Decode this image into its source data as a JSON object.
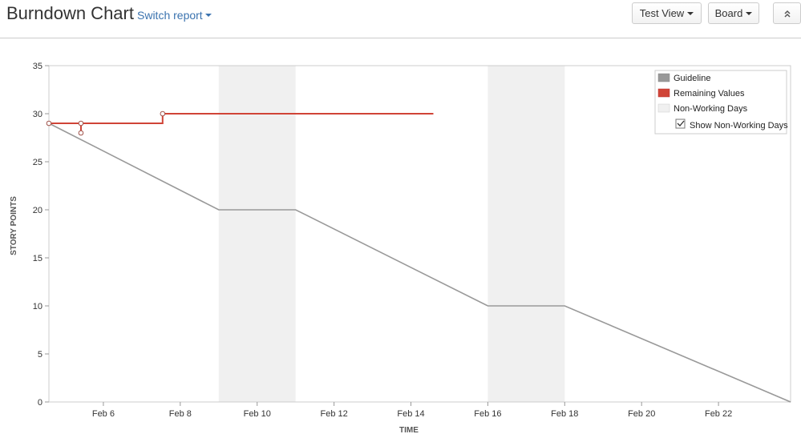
{
  "header": {
    "title": "Burndown Chart",
    "switch_report_label": "Switch report",
    "view_button_label": "Test View",
    "board_button_label": "Board",
    "collapse_icon": "double-chevron-up-icon"
  },
  "chart_data": {
    "type": "line",
    "title": "",
    "xlabel": "TIME",
    "ylabel": "STORY POINTS",
    "ylim": [
      0,
      35
    ],
    "xlim": [
      "2016-02-04 14:00",
      "2016-02-23 21:00"
    ],
    "yticks": [
      0,
      5,
      10,
      15,
      20,
      25,
      30,
      35
    ],
    "xtick_labels": [
      "Feb 6",
      "Feb 8",
      "Feb 10",
      "Feb 12",
      "Feb 14",
      "Feb 16",
      "Feb 18",
      "Feb 20",
      "Feb 22"
    ],
    "xtick_dates": [
      "2016-02-06",
      "2016-02-08",
      "2016-02-10",
      "2016-02-12",
      "2016-02-14",
      "2016-02-16",
      "2016-02-18",
      "2016-02-20",
      "2016-02-22"
    ],
    "non_working_days": [
      {
        "start": "2016-02-09",
        "end": "2016-02-11"
      },
      {
        "start": "2016-02-16",
        "end": "2016-02-18"
      }
    ],
    "series": [
      {
        "name": "Guideline",
        "color": "#999999",
        "points": [
          {
            "x": "2016-02-04 14:00",
            "y": 29
          },
          {
            "x": "2016-02-09",
            "y": 20
          },
          {
            "x": "2016-02-11",
            "y": 20
          },
          {
            "x": "2016-02-16",
            "y": 10
          },
          {
            "x": "2016-02-18",
            "y": 10
          },
          {
            "x": "2016-02-23 21:00",
            "y": 0
          }
        ]
      },
      {
        "name": "Remaining Values",
        "color": "#d04437",
        "step": true,
        "points": [
          {
            "x": "2016-02-04 14:00",
            "y": 29,
            "marker": true
          },
          {
            "x": "2016-02-05 10:00",
            "y": 29,
            "marker": true
          },
          {
            "x": "2016-02-05 10:00",
            "y": 28,
            "marker": true
          },
          {
            "x": "2016-02-05 10:00",
            "y": 29
          },
          {
            "x": "2016-02-07 13:00",
            "y": 29
          },
          {
            "x": "2016-02-07 13:00",
            "y": 30,
            "marker": true
          },
          {
            "x": "2016-02-14 14:00",
            "y": 30
          }
        ]
      }
    ],
    "legend": {
      "position": "top-right",
      "items": [
        {
          "label": "Guideline",
          "color": "#999999"
        },
        {
          "label": "Remaining Values",
          "color": "#d04437"
        },
        {
          "label": "Non-Working Days",
          "color": "#f0f0f0"
        }
      ],
      "checkbox_label": "Show Non-Working Days",
      "checkbox_checked": true
    },
    "grid": false
  }
}
